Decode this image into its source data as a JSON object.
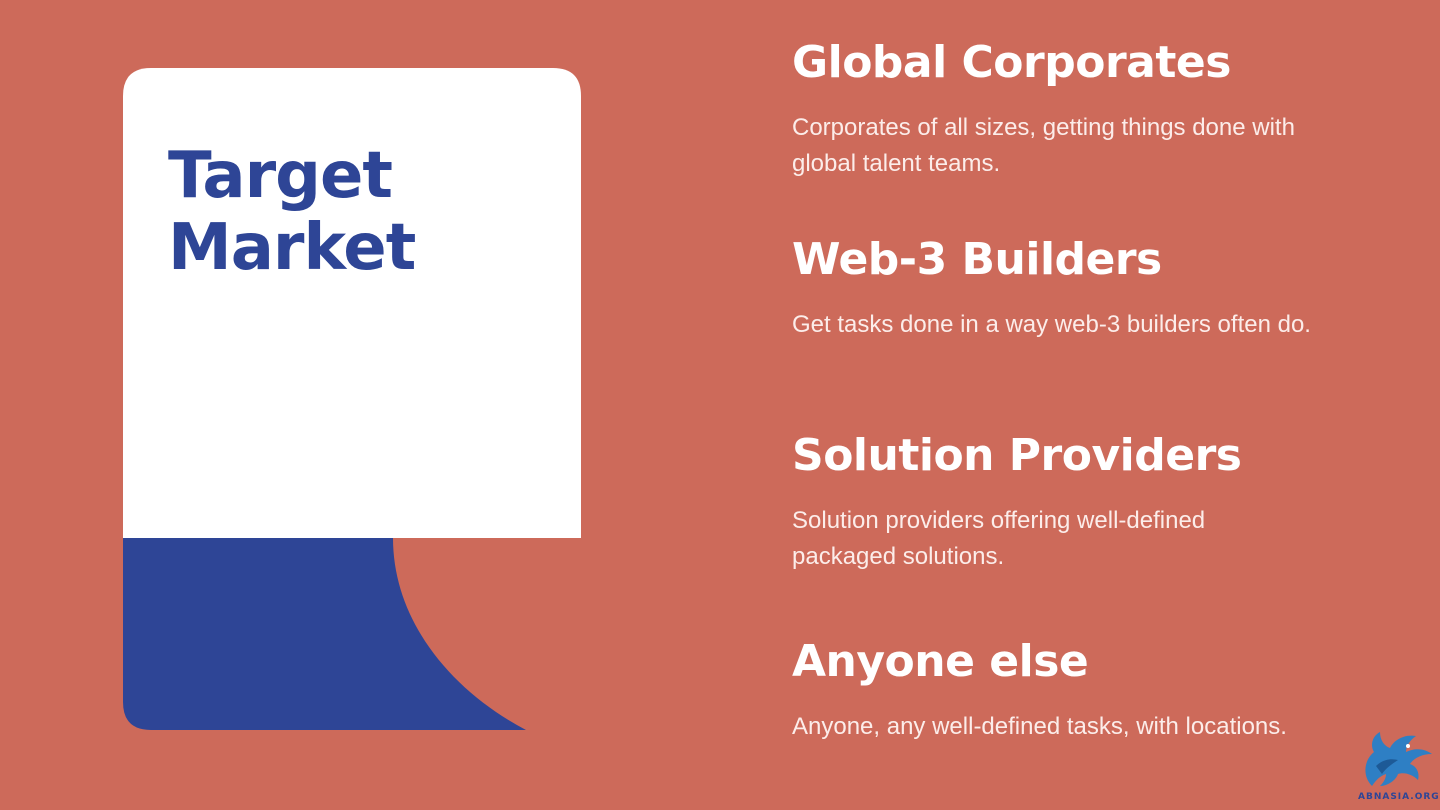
{
  "colors": {
    "background": "#CD6A5A",
    "card": "#FFFFFF",
    "accent_blue": "#2E4596",
    "heading_on_bg": "#FFFFFF",
    "text_on_bg": "#FCEDEA"
  },
  "card": {
    "title_line1": "Target",
    "title_line2": "Market"
  },
  "segments": [
    {
      "heading": "Global Corporates",
      "description": "Corporates of all sizes, getting things done with global talent teams."
    },
    {
      "heading": "Web-3 Builders",
      "description": "Get tasks done in a way web-3 builders often do."
    },
    {
      "heading": "Solution Providers",
      "description": "Solution providers offering well-defined packaged solutions."
    },
    {
      "heading": "Anyone else",
      "description": "Anyone, any well-defined tasks, with locations."
    }
  ],
  "logo": {
    "icon": "dragon-icon",
    "text": "ABNASIA.ORG"
  }
}
